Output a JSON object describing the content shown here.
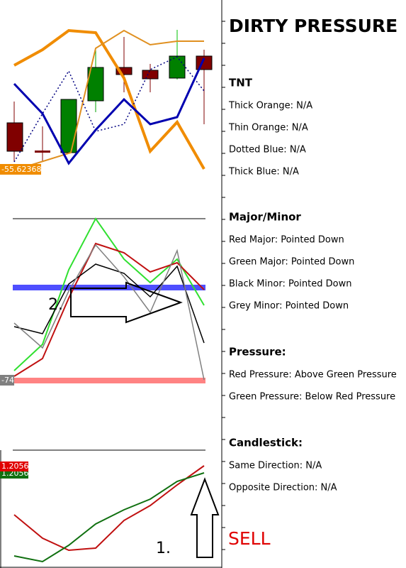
{
  "title": "DIRTY PRESSURE",
  "chart_labels": {
    "top_price": "-55.62368",
    "middle_level": "-74",
    "bottom_red": "1.2056",
    "bottom_green": "1.2056",
    "arrow_2": "2.",
    "arrow_1": "1.",
    "signal": "SELL"
  },
  "sections": [
    {
      "heading": "TNT",
      "items": [
        "Thick Orange: N/A",
        "Thin Orange: N/A",
        "Dotted Blue: N/A",
        "Thick Blue: N/A"
      ]
    },
    {
      "heading": "Major/Minor",
      "items": [
        "Red Major: Pointed Down",
        "Green Major: Pointed Down",
        "Black Minor: Pointed Down",
        "Grey Minor:  Pointed Down"
      ]
    },
    {
      "heading": "Pressure:",
      "items": [
        "Red Pressure: Above Green Pressure",
        "Green Pressure: Below Red Pressure"
      ]
    },
    {
      "heading": "Candlestick:",
      "items": [
        "Same Direction: N/A",
        "Opposite Direction: N/A"
      ]
    }
  ]
}
